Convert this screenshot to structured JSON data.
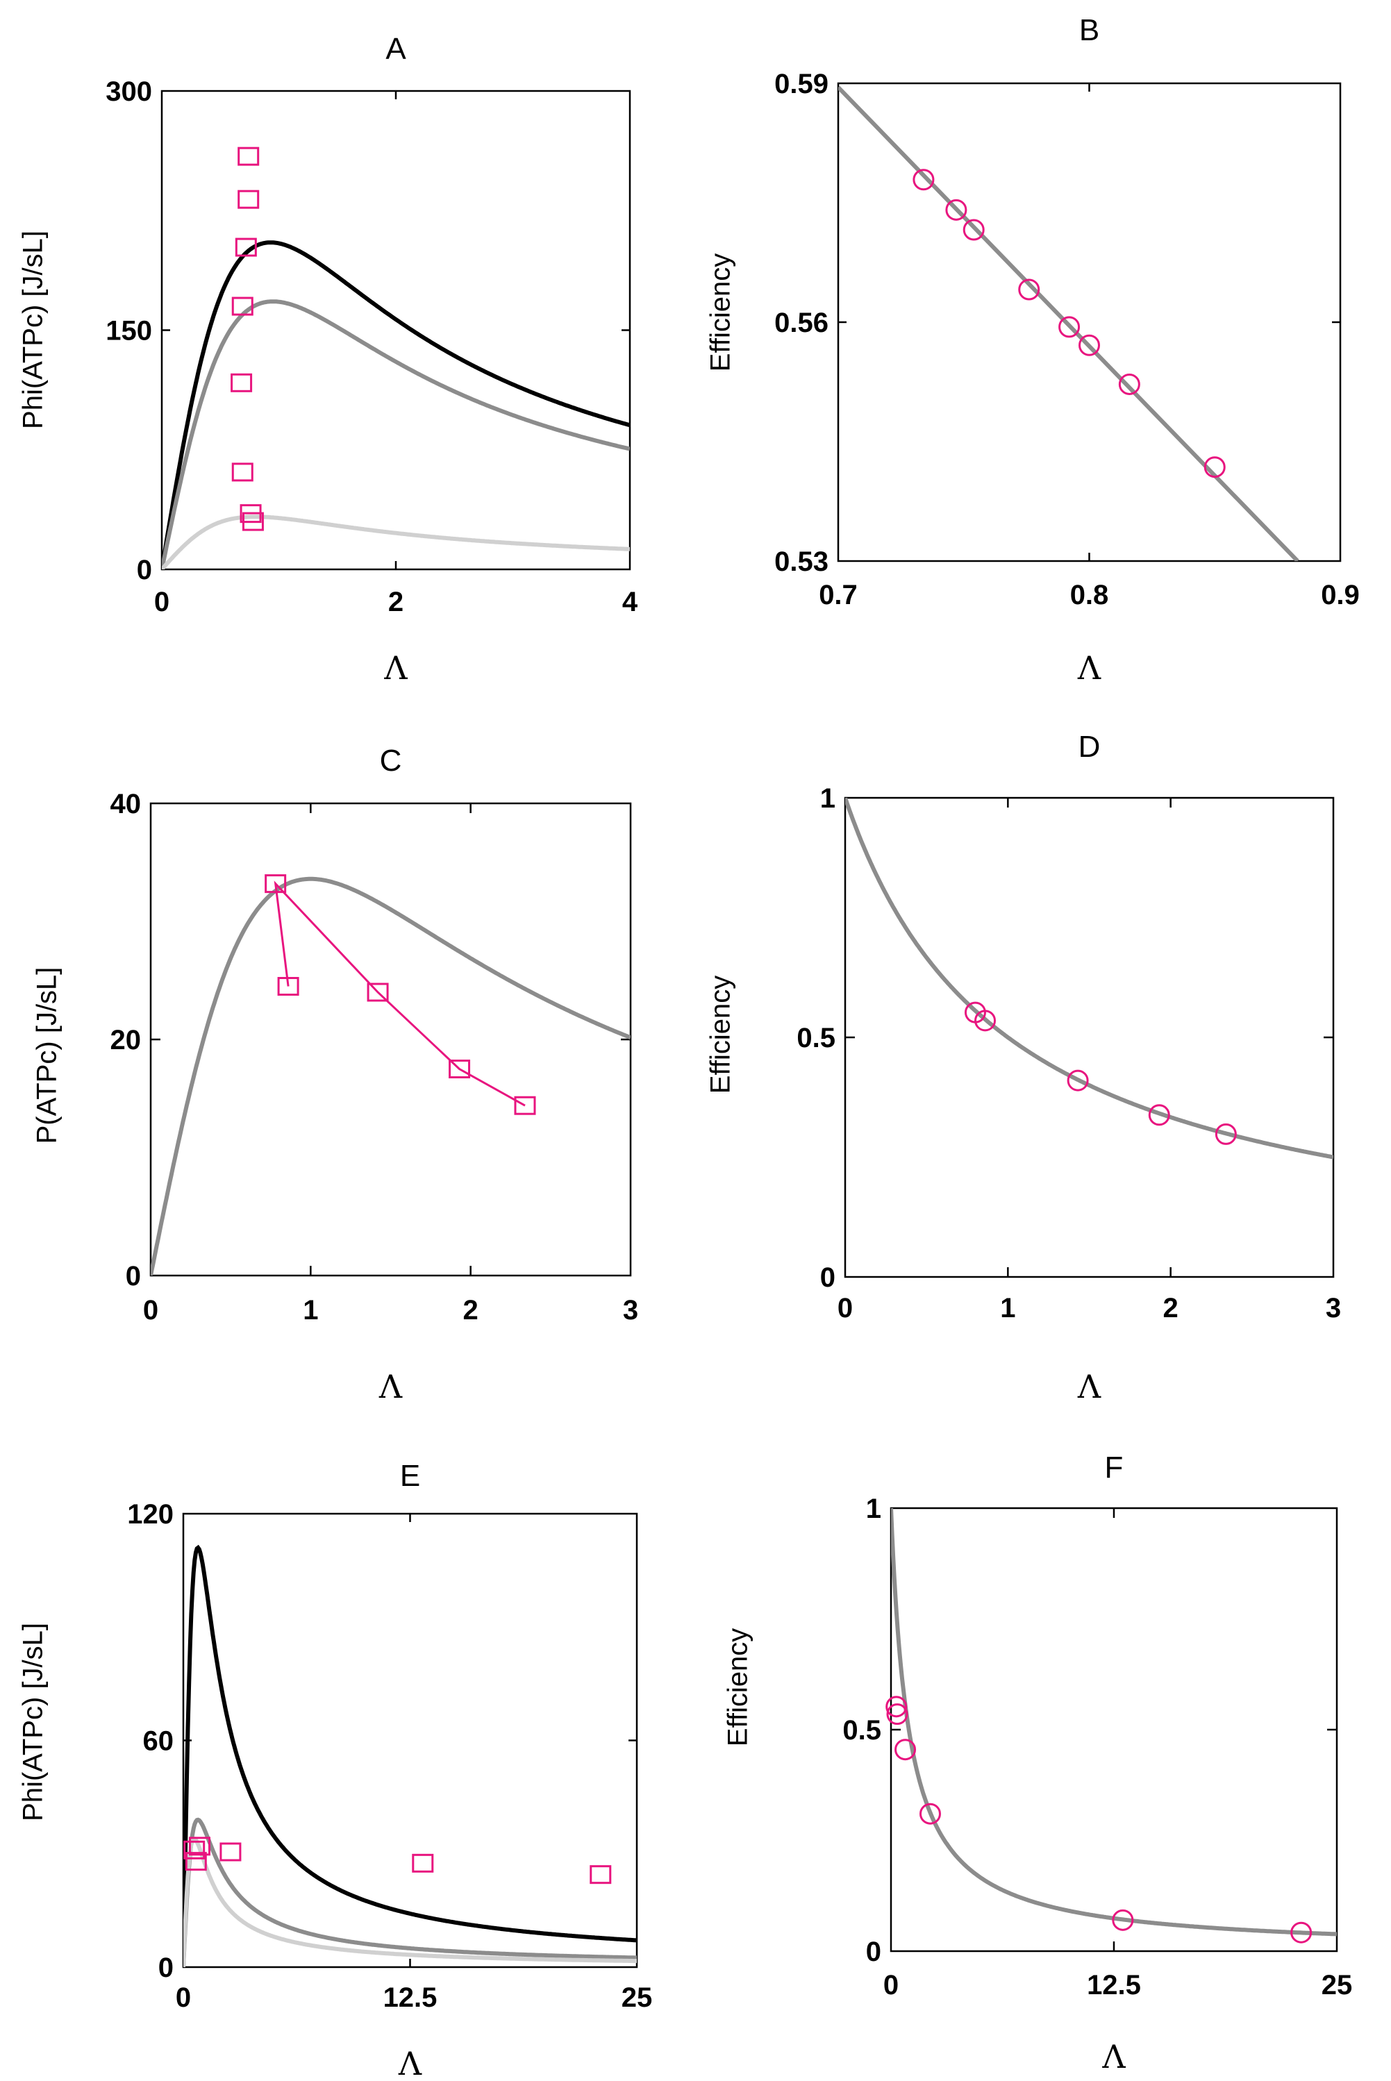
{
  "chart_data": [
    {
      "panel": "A",
      "type": "line",
      "title": "A",
      "xlabel": "Λ",
      "ylabel": "Phi(ATPc) [J/sL]",
      "xlim": [
        0,
        4
      ],
      "ylim": [
        0,
        300
      ],
      "xticks": [
        0,
        2,
        4
      ],
      "yticks": [
        0,
        150,
        300
      ],
      "xtick_labels": [
        "0",
        "2",
        "4"
      ],
      "ytick_labels": [
        "0",
        "150",
        "300"
      ],
      "curves": [
        {
          "name": "black curve",
          "color": "#000000",
          "Pmax": 205,
          "lam0": 0.93
        },
        {
          "name": "gray curve",
          "color": "#8c8c8c",
          "Pmax": 168,
          "lam0": 0.95
        },
        {
          "name": "light gray curve",
          "color": "#d0d0d0",
          "Pmax": 33,
          "lam0": 0.8
        }
      ],
      "markers": {
        "shape": "square",
        "color": "#e8157f",
        "points": [
          [
            0.74,
            259
          ],
          [
            0.74,
            232
          ],
          [
            0.72,
            202
          ],
          [
            0.69,
            165
          ],
          [
            0.68,
            117
          ],
          [
            0.69,
            61
          ],
          [
            0.76,
            35
          ],
          [
            0.78,
            30
          ]
        ]
      }
    },
    {
      "panel": "B",
      "type": "line",
      "title": "B",
      "xlabel": "Λ",
      "ylabel": "Efficiency",
      "xlim": [
        0.7,
        0.9
      ],
      "ylim": [
        0.53,
        0.59
      ],
      "xticks": [
        0.7,
        0.8,
        0.9
      ],
      "yticks": [
        0.53,
        0.56,
        0.59
      ],
      "xtick_labels": [
        "0.7",
        "0.8",
        "0.9"
      ],
      "ytick_labels": [
        "0.53",
        "0.56",
        "0.59"
      ],
      "line": {
        "color": "#8c8c8c",
        "x": [
          0.7,
          0.883
        ],
        "y": [
          0.5895,
          0.53
        ]
      },
      "markers": {
        "shape": "circle",
        "color": "#e8157f",
        "points": [
          [
            0.734,
            0.5779
          ],
          [
            0.747,
            0.5741
          ],
          [
            0.754,
            0.5716
          ],
          [
            0.776,
            0.5641
          ],
          [
            0.792,
            0.5594
          ],
          [
            0.8,
            0.5571
          ],
          [
            0.816,
            0.5522
          ],
          [
            0.85,
            0.5418
          ]
        ]
      }
    },
    {
      "panel": "C",
      "type": "line",
      "title": "C",
      "xlabel": "Λ",
      "ylabel": "P(ATPc) [J/sL]",
      "xlim": [
        0,
        3
      ],
      "ylim": [
        0,
        40
      ],
      "xticks": [
        0,
        1,
        2,
        3
      ],
      "yticks": [
        0,
        20,
        40
      ],
      "xtick_labels": [
        "0",
        "1",
        "2",
        "3"
      ],
      "ytick_labels": [
        "0",
        "20",
        "40"
      ],
      "curves": [
        {
          "name": "gray curve",
          "color": "#8c8c8c",
          "Pmax": 33.6,
          "lam0": 1.0
        }
      ],
      "markers": {
        "shape": "square",
        "color": "#e8157f",
        "connected": true,
        "points": [
          [
            0.86,
            24.5
          ],
          [
            0.78,
            33.2
          ],
          [
            1.42,
            24.0
          ],
          [
            1.93,
            17.5
          ],
          [
            2.34,
            14.4
          ]
        ]
      }
    },
    {
      "panel": "D",
      "type": "line",
      "title": "D",
      "xlabel": "Λ",
      "ylabel": "Efficiency",
      "xlim": [
        0,
        3
      ],
      "ylim": [
        0,
        1
      ],
      "xticks": [
        0,
        1,
        2,
        3
      ],
      "yticks": [
        0,
        0.5,
        1
      ],
      "xtick_labels": [
        "0",
        "1",
        "2",
        "3"
      ],
      "ytick_labels": [
        "0",
        "0.5",
        "1"
      ],
      "curve": {
        "color": "#8c8c8c",
        "formula": "1/(1+Λ)"
      },
      "markers": {
        "shape": "circle",
        "color": "#e8157f",
        "points": [
          [
            0.8,
            0.552
          ],
          [
            0.86,
            0.535
          ],
          [
            1.43,
            0.41
          ],
          [
            1.93,
            0.338
          ],
          [
            2.34,
            0.298
          ]
        ]
      }
    },
    {
      "panel": "E",
      "type": "line",
      "title": "E",
      "xlabel": "Λ",
      "ylabel": "Phi(ATPc)  [J/sL]",
      "xlim": [
        0,
        25
      ],
      "ylim": [
        0,
        120
      ],
      "xticks": [
        0,
        12.5,
        25
      ],
      "yticks": [
        0,
        60,
        120
      ],
      "xtick_labels": [
        "0",
        "12.5",
        "25"
      ],
      "ytick_labels": [
        "0",
        "60",
        "120"
      ],
      "curves": [
        {
          "name": "black curve",
          "color": "#000000",
          "Pmax": 111,
          "lam0": 0.8
        },
        {
          "name": "gray curve",
          "color": "#8c8c8c",
          "Pmax": 39,
          "lam0": 0.8
        },
        {
          "name": "light gray curve",
          "color": "#d0d0d0",
          "Pmax": 34,
          "lam0": 0.6
        }
      ],
      "markers": {
        "shape": "square",
        "color": "#e8157f",
        "points": [
          [
            0.7,
            28
          ],
          [
            0.6,
            31
          ],
          [
            0.9,
            32
          ],
          [
            2.6,
            30.5
          ],
          [
            13.2,
            27.5
          ],
          [
            23.0,
            24.5
          ]
        ]
      }
    },
    {
      "panel": "F",
      "type": "line",
      "title": "F",
      "xlabel": "Λ",
      "ylabel": "Efficiency",
      "xlim": [
        0,
        25
      ],
      "ylim": [
        0,
        1
      ],
      "xticks": [
        0,
        12.5,
        25
      ],
      "yticks": [
        0,
        0.5,
        1
      ],
      "xtick_labels": [
        "0",
        "12.5",
        "25"
      ],
      "ytick_labels": [
        "0",
        "0.5",
        "1"
      ],
      "curve": {
        "color": "#8c8c8c",
        "formula": "1/(1+Λ)"
      },
      "markers": {
        "shape": "circle",
        "color": "#e8157f",
        "points": [
          [
            0.3,
            0.552
          ],
          [
            0.35,
            0.535
          ],
          [
            0.8,
            0.455
          ],
          [
            2.2,
            0.31
          ],
          [
            13.0,
            0.07
          ],
          [
            23.0,
            0.042
          ]
        ]
      }
    }
  ]
}
